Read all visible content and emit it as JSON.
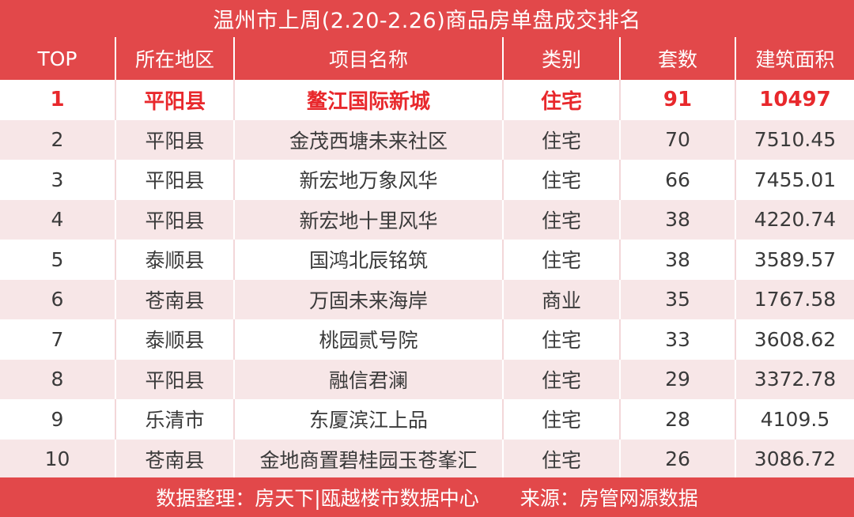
{
  "title": "温州市上周(2.20-2.26)商品房单盘成交排名",
  "columns": [
    "TOP",
    "所在地区",
    "项目名称",
    "类别",
    "套数",
    "建筑面积"
  ],
  "rows": [
    {
      "rank": "1",
      "district": "平阳县",
      "project": "鳌江国际新城",
      "type": "住宅",
      "units": "91",
      "area": "10497"
    },
    {
      "rank": "2",
      "district": "平阳县",
      "project": "金茂西塘未来社区",
      "type": "住宅",
      "units": "70",
      "area": "7510.45"
    },
    {
      "rank": "3",
      "district": "平阳县",
      "project": "新宏地万象风华",
      "type": "住宅",
      "units": "66",
      "area": "7455.01"
    },
    {
      "rank": "4",
      "district": "平阳县",
      "project": "新宏地十里风华",
      "type": "住宅",
      "units": "38",
      "area": "4220.74"
    },
    {
      "rank": "5",
      "district": "泰顺县",
      "project": "国鸿北辰铭筑",
      "type": "住宅",
      "units": "38",
      "area": "3589.57"
    },
    {
      "rank": "6",
      "district": "苍南县",
      "project": "万固未来海岸",
      "type": "商业",
      "units": "35",
      "area": "1767.58"
    },
    {
      "rank": "7",
      "district": "泰顺县",
      "project": "桃园贰号院",
      "type": "住宅",
      "units": "33",
      "area": "3608.62"
    },
    {
      "rank": "8",
      "district": "平阳县",
      "project": "融信君澜",
      "type": "住宅",
      "units": "29",
      "area": "3372.78"
    },
    {
      "rank": "9",
      "district": "乐清市",
      "project": "东厦滨江上品",
      "type": "住宅",
      "units": "28",
      "area": "4109.5"
    },
    {
      "rank": "10",
      "district": "苍南县",
      "project": "金地商置碧桂园玉苍峯汇",
      "type": "住宅",
      "units": "26",
      "area": "3086.72"
    }
  ],
  "footer": {
    "compiler": "数据整理：房天下|瓯越楼市数据中心",
    "source": "来源：房管网源数据"
  },
  "colors": {
    "header_bg": "#e2484a",
    "stripe_bg": "#f7e6e7",
    "top1_text": "#e8282c"
  }
}
